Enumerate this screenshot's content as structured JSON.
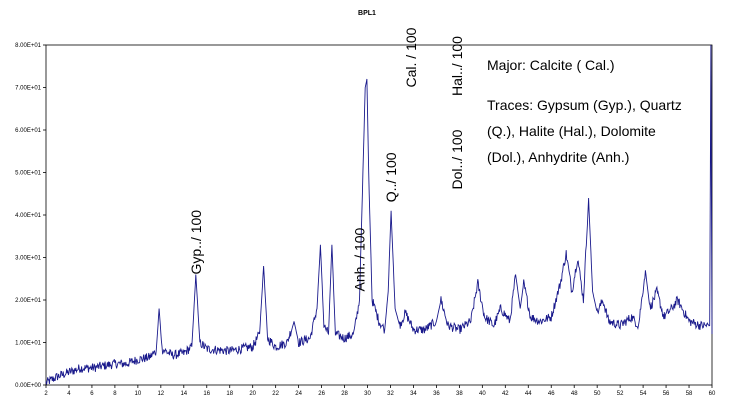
{
  "chart_data": {
    "type": "line",
    "title": "BPL1",
    "xlabel": "",
    "ylabel": "",
    "xlim": [
      2,
      60
    ],
    "ylim": [
      0,
      80
    ],
    "grid": false,
    "x_ticks": [
      2,
      4,
      6,
      8,
      10,
      12,
      14,
      16,
      18,
      20,
      22,
      24,
      26,
      28,
      30,
      32,
      34,
      36,
      38,
      40,
      42,
      44,
      46,
      48,
      50,
      52,
      54,
      56,
      58,
      60
    ],
    "x_tick_labels": [
      "2",
      "4",
      "6",
      "8",
      "10",
      "12",
      "14",
      "16",
      "18",
      "20",
      "22",
      "24",
      "26",
      "28",
      "30",
      "32",
      "34",
      "36",
      "38",
      "40",
      "42",
      "44",
      "46",
      "48",
      "50",
      "52",
      "54",
      "56",
      "58",
      "60"
    ],
    "y_ticks": [
      0,
      10,
      20,
      30,
      40,
      50,
      60,
      70,
      80
    ],
    "y_tick_labels": [
      "0.00E+00",
      "1.00E+01",
      "2.00E+01",
      "3.00E+01",
      "4.00E+01",
      "5.00E+01",
      "6.00E+01",
      "7.00E+01",
      "8.00E+01"
    ],
    "series": [
      {
        "color": "#1a1a8c",
        "points": [
          [
            2.0,
            0.5
          ],
          [
            3.0,
            2.0
          ],
          [
            4.0,
            3.0
          ],
          [
            5.0,
            4.0
          ],
          [
            6.0,
            4.0
          ],
          [
            7.0,
            4.5
          ],
          [
            8.0,
            5.0
          ],
          [
            9.0,
            5.0
          ],
          [
            10.0,
            6.0
          ],
          [
            11.0,
            6.5
          ],
          [
            11.6,
            8.0
          ],
          [
            11.85,
            18.0
          ],
          [
            12.1,
            8.5
          ],
          [
            13.0,
            7.0
          ],
          [
            14.0,
            7.5
          ],
          [
            14.7,
            9.0
          ],
          [
            15.05,
            26.0
          ],
          [
            15.4,
            10.0
          ],
          [
            16.0,
            8.5
          ],
          [
            18.0,
            8.0
          ],
          [
            20.0,
            9.0
          ],
          [
            20.6,
            12.0
          ],
          [
            20.95,
            28.0
          ],
          [
            21.3,
            11.0
          ],
          [
            22.0,
            9.0
          ],
          [
            23.0,
            10.0
          ],
          [
            23.6,
            15.0
          ],
          [
            24.0,
            10.0
          ],
          [
            25.0,
            11.0
          ],
          [
            25.6,
            18.0
          ],
          [
            25.9,
            33.0
          ],
          [
            26.2,
            14.0
          ],
          [
            26.6,
            12.0
          ],
          [
            26.9,
            33.0
          ],
          [
            27.2,
            12.0
          ],
          [
            28.0,
            11.0
          ],
          [
            28.8,
            12.0
          ],
          [
            29.3,
            20.0
          ],
          [
            29.6,
            50.0
          ],
          [
            29.8,
            70.0
          ],
          [
            29.95,
            72.0
          ],
          [
            30.1,
            50.0
          ],
          [
            30.4,
            20.0
          ],
          [
            31.0,
            15.0
          ],
          [
            31.5,
            13.0
          ],
          [
            31.8,
            22.0
          ],
          [
            32.05,
            41.0
          ],
          [
            32.4,
            18.0
          ],
          [
            32.8,
            14.0
          ],
          [
            33.3,
            17.0
          ],
          [
            34.0,
            13.0
          ],
          [
            35.0,
            13.0
          ],
          [
            36.0,
            15.0
          ],
          [
            36.4,
            20.0
          ],
          [
            37.0,
            14.0
          ],
          [
            38.0,
            13.0
          ],
          [
            39.0,
            15.0
          ],
          [
            39.6,
            24.0
          ],
          [
            40.2,
            16.0
          ],
          [
            41.0,
            14.0
          ],
          [
            41.6,
            18.0
          ],
          [
            42.4,
            15.0
          ],
          [
            42.9,
            26.0
          ],
          [
            43.3,
            18.0
          ],
          [
            43.6,
            24.0
          ],
          [
            44.2,
            16.0
          ],
          [
            45.0,
            15.0
          ],
          [
            46.0,
            16.0
          ],
          [
            46.8,
            24.0
          ],
          [
            47.3,
            31.0
          ],
          [
            47.8,
            22.0
          ],
          [
            48.3,
            30.0
          ],
          [
            48.8,
            20.0
          ],
          [
            49.25,
            44.0
          ],
          [
            49.6,
            22.0
          ],
          [
            50.0,
            17.0
          ],
          [
            50.5,
            20.0
          ],
          [
            51.0,
            15.0
          ],
          [
            52.0,
            14.0
          ],
          [
            53.0,
            16.0
          ],
          [
            53.6,
            14.0
          ],
          [
            54.2,
            27.0
          ],
          [
            54.6,
            18.0
          ],
          [
            55.2,
            22.0
          ],
          [
            55.8,
            16.0
          ],
          [
            56.5,
            18.0
          ],
          [
            57.0,
            20.0
          ],
          [
            58.0,
            15.0
          ],
          [
            59.0,
            14.0
          ],
          [
            59.8,
            14.0
          ],
          [
            59.9,
            80.0
          ],
          [
            60.0,
            12.0
          ]
        ]
      }
    ],
    "peak_labels": [
      {
        "text": "Gyp../ 100",
        "x": 15.05,
        "y": 26
      },
      {
        "text": "Anh. / 100",
        "x": 29.3,
        "y": 22
      },
      {
        "text": "Q../ 100",
        "x": 32.05,
        "y": 43
      },
      {
        "text": "Cal. / 100",
        "x": 33.8,
        "y": 70
      },
      {
        "text": "Dol../ 100",
        "x": 37.8,
        "y": 46
      },
      {
        "text": "Hal../ 100",
        "x": 37.8,
        "y": 68
      }
    ],
    "annotations": [
      "Major: Calcite ( Cal.)",
      "Traces: Gypsum (Gyp.), Quartz",
      "(Q.), Halite (Hal.), Dolomite",
      "(Dol.), Anhydrite (Anh.)"
    ]
  }
}
